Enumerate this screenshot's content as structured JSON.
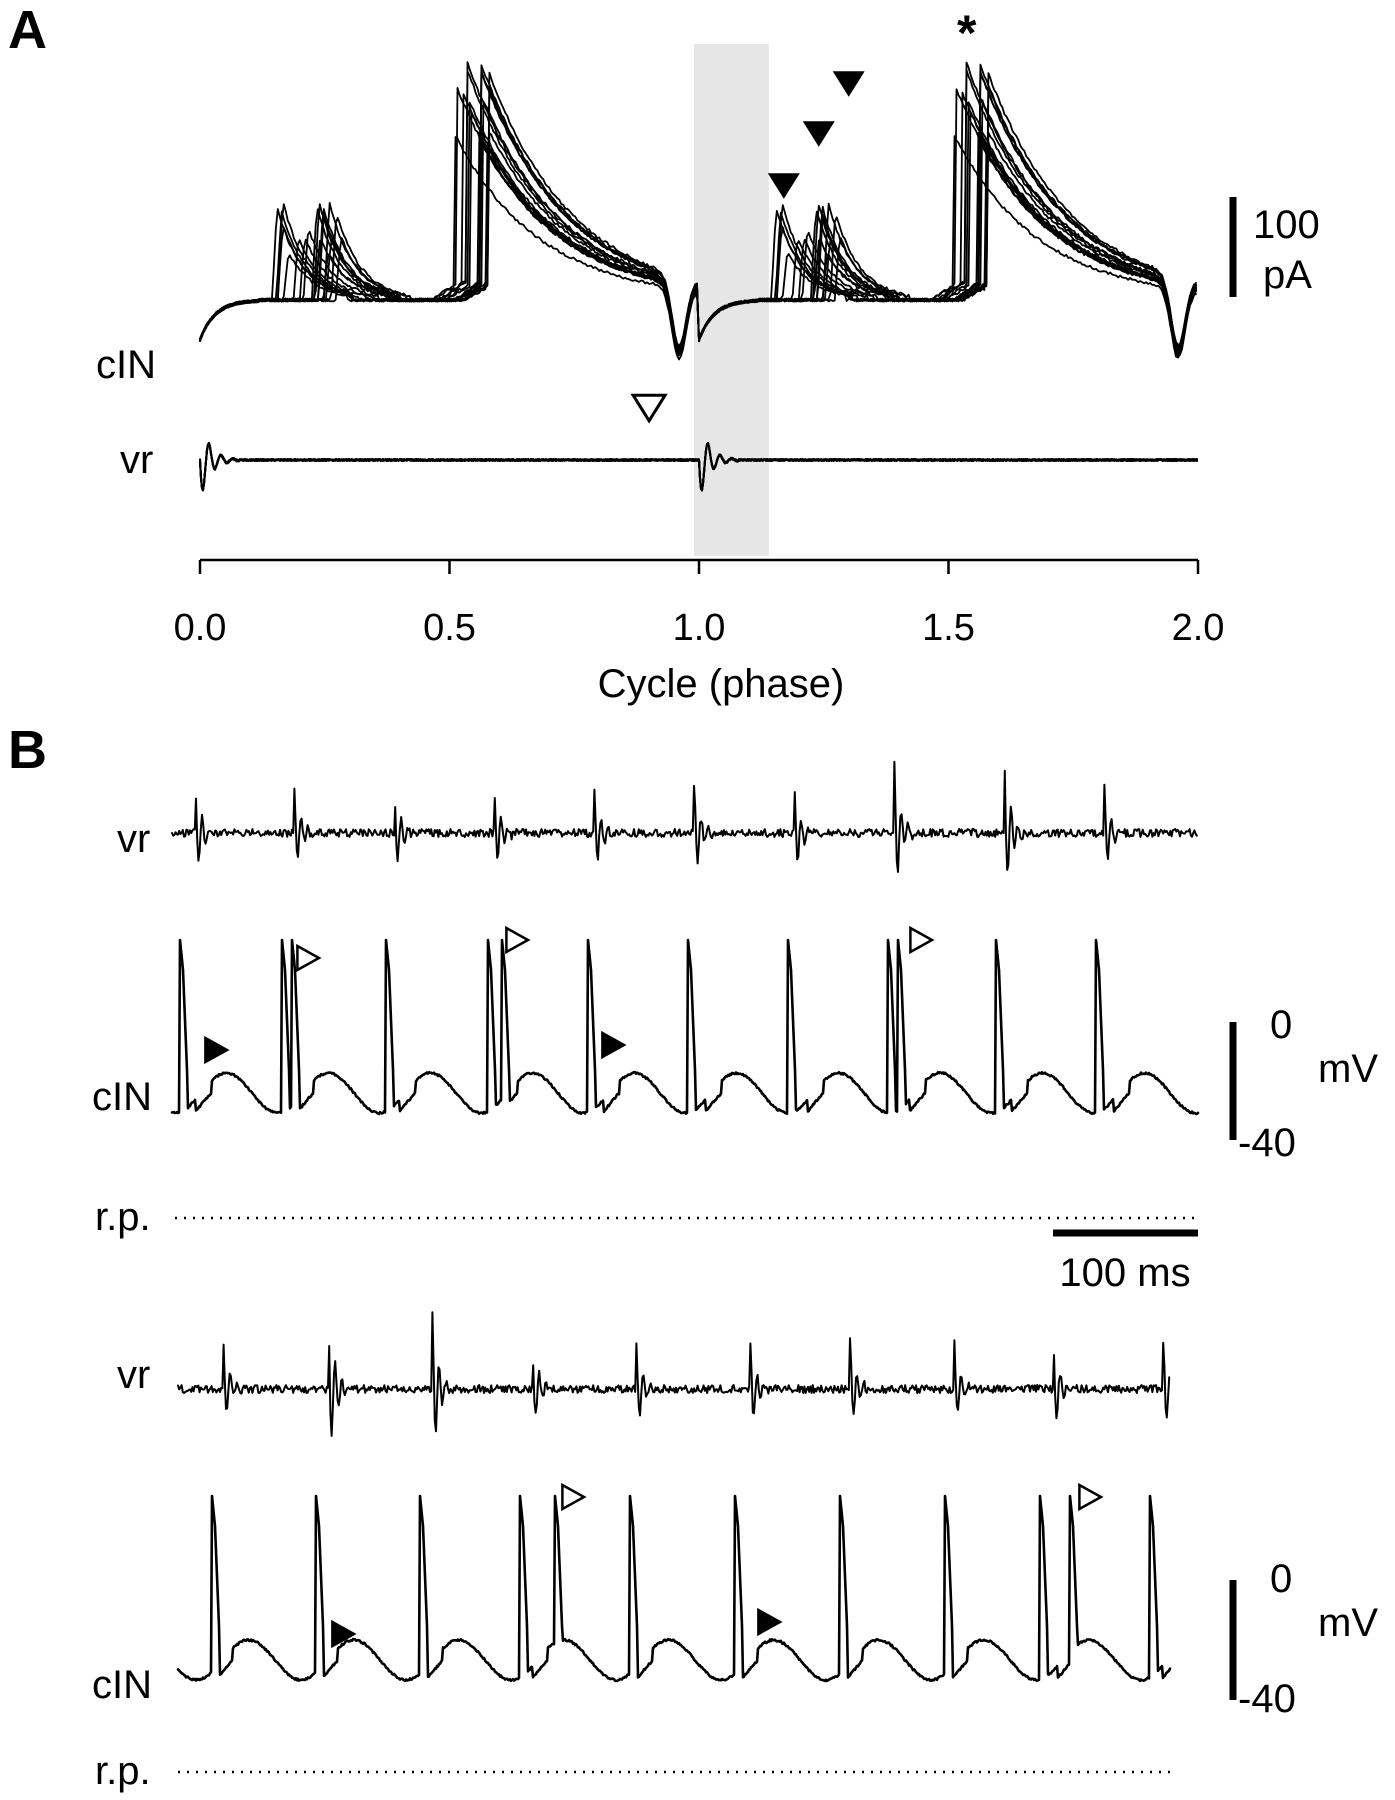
{
  "panelA": {
    "letter": "A",
    "trace_label_cin": "cIN",
    "trace_label_vr": "vr",
    "scale_bar": {
      "value": "100",
      "unit": "pA"
    },
    "xaxis": {
      "label": "Cycle (phase)",
      "ticks": [
        "0.0",
        "0.5",
        "1.0",
        "1.5",
        "2.0"
      ],
      "range": [
        0,
        2
      ]
    },
    "shaded_region": [
      0.99,
      1.14
    ],
    "asterisk": "*",
    "open_arrow_phase": 0.9,
    "filled_arrow_phases": [
      1.17,
      1.24,
      1.3
    ]
  },
  "panelB": {
    "letter": "B",
    "recordings": [
      {
        "vr_label": "vr",
        "cin_label": "cIN",
        "rp_label": "r.p.",
        "vm_scale": {
          "top": "0",
          "unit": "mV",
          "bottom": "-40"
        },
        "time_scale": "100 ms"
      },
      {
        "vr_label": "vr",
        "cin_label": "cIN",
        "rp_label": "r.p.",
        "vm_scale": {
          "top": "0",
          "unit": "mV",
          "bottom": "-40"
        }
      }
    ]
  }
}
